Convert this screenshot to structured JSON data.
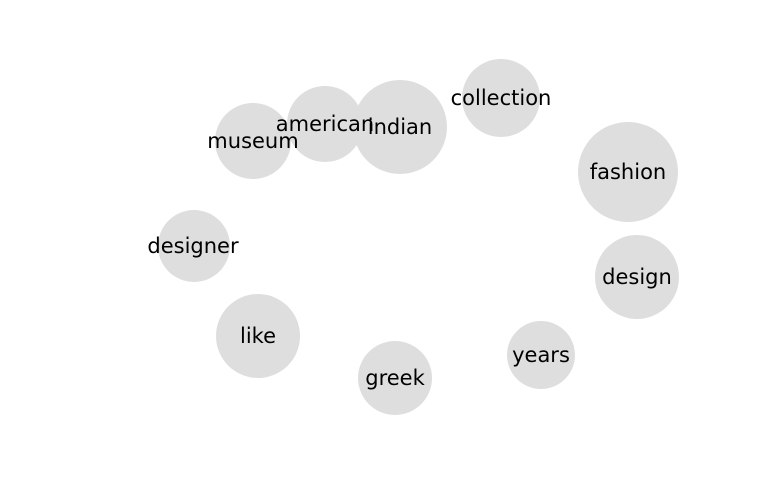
{
  "diagram": {
    "type": "word-bubble-cloud",
    "bubble_color": "#dedede",
    "text_color": "#000000",
    "background": "#ffffff",
    "words": [
      {
        "text": "museum"
      },
      {
        "text": "american"
      },
      {
        "text": "indian"
      },
      {
        "text": "collection"
      },
      {
        "text": "fashion"
      },
      {
        "text": "designer"
      },
      {
        "text": "design"
      },
      {
        "text": "like"
      },
      {
        "text": "years"
      },
      {
        "text": "greek"
      }
    ]
  }
}
